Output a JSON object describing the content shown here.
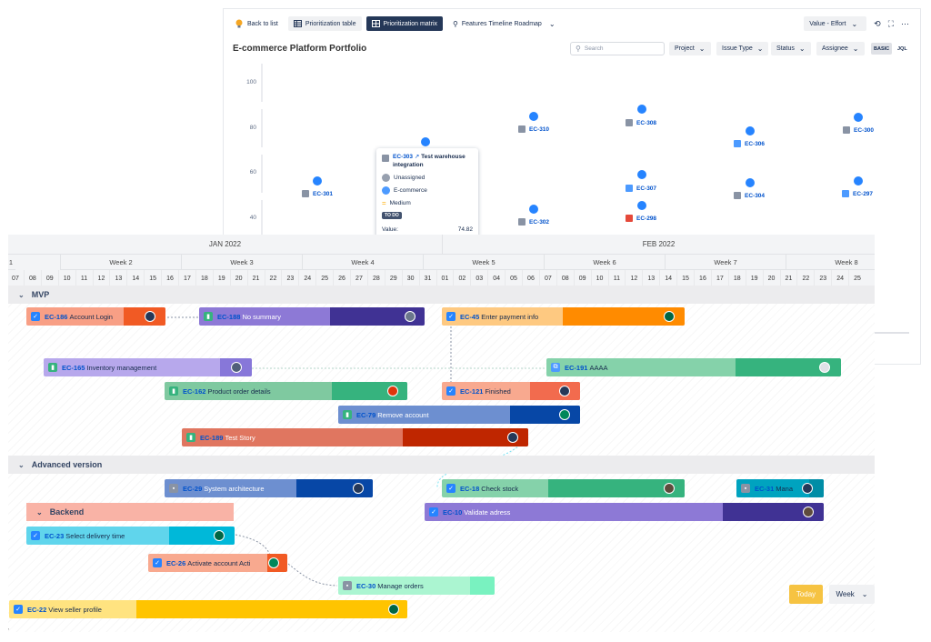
{
  "matrix": {
    "back_label": "Back to list",
    "tabs": [
      "Prioritization table",
      "Prioritization matrix",
      "Features Timeline Roadmap"
    ],
    "view_select": "Value - Effort",
    "title": "E-commerce Platform Portfolio",
    "search_placeholder": "Search",
    "filters": [
      "Project",
      "Issue Type",
      "Status",
      "Assignee"
    ],
    "modes": [
      "BASIC",
      "JQL"
    ],
    "y_ticks": [
      "100",
      "80",
      "60",
      "40"
    ],
    "points": [
      "EC-301",
      "EC-310",
      "EC-308",
      "EC-306",
      "EC-300",
      "EC-307",
      "EC-304",
      "EC-297",
      "EC-302",
      "EC-298"
    ],
    "popup": {
      "key": "EC-303",
      "title_line1": "Test warehouse",
      "title_line2": "integration",
      "assignee": "Unassigned",
      "project": "E-commerce",
      "priority": "Medium",
      "status": "TO DO",
      "value_label": "Value:",
      "value": "74.82"
    }
  },
  "timeline": {
    "months": [
      "JAN 2022",
      "FEB 2022"
    ],
    "weeks": [
      "Week 2",
      "Week 3",
      "Week 4",
      "Week 5",
      "Week 6",
      "Week 7",
      "Week 8"
    ],
    "days": [
      "07",
      "08",
      "09",
      "10",
      "11",
      "12",
      "13",
      "14",
      "15",
      "16",
      "17",
      "18",
      "19",
      "20",
      "21",
      "22",
      "23",
      "24",
      "25",
      "26",
      "27",
      "28",
      "29",
      "30",
      "31",
      "01",
      "02",
      "03",
      "04",
      "05",
      "06",
      "07",
      "08",
      "09",
      "10",
      "11",
      "12",
      "13",
      "14",
      "15",
      "16",
      "17",
      "18",
      "19",
      "20",
      "21",
      "22",
      "23",
      "24",
      "25"
    ],
    "day_prefix": "1",
    "groups": [
      "MVP",
      "Advanced version"
    ],
    "subgroup": "Backend",
    "bars": [
      {
        "key": "EC-186",
        "title": "Account Login"
      },
      {
        "key": "EC-188",
        "title": "No summary"
      },
      {
        "key": "EC-45",
        "title": "Enter payment info"
      },
      {
        "key": "EC-165",
        "title": "Inventory management"
      },
      {
        "key": "EC-191",
        "title": "AAAA"
      },
      {
        "key": "EC-162",
        "title": "Product order details"
      },
      {
        "key": "EC-121",
        "title": "Finished"
      },
      {
        "key": "EC-79",
        "title": "Remove account"
      },
      {
        "key": "EC-189",
        "title": "Test Story"
      },
      {
        "key": "EC-29",
        "title": "System architecture"
      },
      {
        "key": "EC-18",
        "title": "Check stock"
      },
      {
        "key": "EC-31",
        "title": "Mana"
      },
      {
        "key": "EC-10",
        "title": "Validate adress"
      },
      {
        "key": "EC-23",
        "title": "Select delivery time"
      },
      {
        "key": "EC-26",
        "title": "Activate account Acti"
      },
      {
        "key": "EC-30",
        "title": "Manage orders"
      },
      {
        "key": "EC-22",
        "title": "View seller profile"
      }
    ],
    "today": "Today",
    "scale": "Week"
  },
  "colors": {
    "accent": "#0052cc",
    "today": "#f6c342"
  }
}
